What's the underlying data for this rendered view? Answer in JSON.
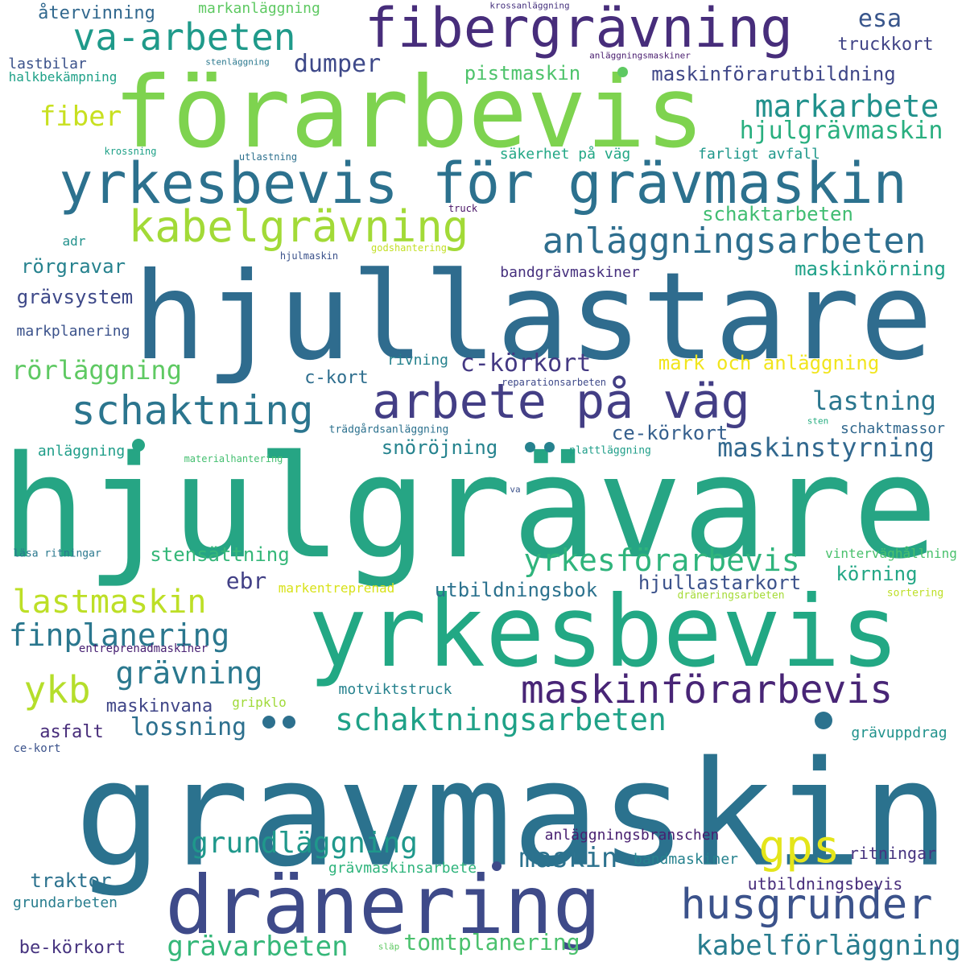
{
  "words": [
    {
      "text": "hjulgrävare",
      "color": "#26a584"
    },
    {
      "text": "gravmaskin",
      "color": "#2b728e"
    },
    {
      "text": "hjullastare",
      "color": "#2f6c8e"
    },
    {
      "text": "förarbevis",
      "color": "#7ed34f"
    },
    {
      "text": "yrkesbevis",
      "color": "#22a884"
    },
    {
      "text": "dränering",
      "color": "#3e4a89"
    },
    {
      "text": "yrkesbevis för grävmaskin",
      "color": "#2c718e"
    },
    {
      "text": "fibergrävning",
      "color": "#472d7b"
    },
    {
      "text": "arbete på väg",
      "color": "#433e85"
    },
    {
      "text": "kabelgrävning",
      "color": "#a2da37"
    },
    {
      "text": "anläggningsarbeten",
      "color": "#2e6e8e"
    },
    {
      "text": "maskinförarbevis",
      "color": "#482576"
    },
    {
      "text": "va-arbeten",
      "color": "#1f9a8a"
    },
    {
      "text": "husgrunder",
      "color": "#3b528b"
    },
    {
      "text": "schaktning",
      "color": "#2b758e"
    },
    {
      "text": "gps",
      "color": "#e4e51a"
    },
    {
      "text": "schaktningsarbeten",
      "color": "#1fa187"
    },
    {
      "text": "markarbete",
      "color": "#21918c"
    },
    {
      "text": "yrkesförarbevis",
      "color": "#2fb47c"
    },
    {
      "text": "hjulgrävmaskin",
      "color": "#29af7f"
    },
    {
      "text": "grundläggning",
      "color": "#1f988b"
    },
    {
      "text": "lastmaskin",
      "color": "#bddf26"
    },
    {
      "text": "finplanering",
      "color": "#2a778e"
    },
    {
      "text": "grävning",
      "color": "#2a788e"
    },
    {
      "text": "ykb",
      "color": "#b5de2b"
    },
    {
      "text": "kabelförläggning",
      "color": "#287c8e"
    },
    {
      "text": "c-körkort",
      "color": "#443983"
    },
    {
      "text": "rörläggning",
      "color": "#5ec962"
    },
    {
      "text": "maskinstyrning",
      "color": "#31688e"
    },
    {
      "text": "lastning",
      "color": "#2a768e"
    },
    {
      "text": "fiber",
      "color": "#c8e020"
    },
    {
      "text": "dumper",
      "color": "#3e4989"
    },
    {
      "text": "esa",
      "color": "#39568c"
    },
    {
      "text": "maskin",
      "color": "#2c728e"
    },
    {
      "text": "grävarbeten",
      "color": "#35b779"
    },
    {
      "text": "tomtplanering",
      "color": "#4ac16d"
    },
    {
      "text": "lossning",
      "color": "#2d708e"
    },
    {
      "text": "pistmaskin",
      "color": "#4ec36b"
    },
    {
      "text": "maskinförarutbildning",
      "color": "#3f4788"
    },
    {
      "text": "schaktarbeten",
      "color": "#40bd72"
    },
    {
      "text": "mark och anläggning",
      "color": "#f1e51d"
    },
    {
      "text": "hjullastarkort",
      "color": "#3b528b"
    },
    {
      "text": "körning",
      "color": "#22a785"
    },
    {
      "text": "stensättning",
      "color": "#35b779"
    },
    {
      "text": "ce-körkort",
      "color": "#355f8d"
    },
    {
      "text": "snöröjning",
      "color": "#25838e"
    },
    {
      "text": "utbildningsbok",
      "color": "#2c728e"
    },
    {
      "text": "maskinkörning",
      "color": "#1fa188"
    },
    {
      "text": "rörgravar",
      "color": "#26828e"
    },
    {
      "text": "grävsystem",
      "color": "#3e4989"
    },
    {
      "text": "ebr",
      "color": "#424086"
    },
    {
      "text": "traktor",
      "color": "#2c728e"
    },
    {
      "text": "asfalt",
      "color": "#472c7a"
    },
    {
      "text": "maskinvana",
      "color": "#404688"
    },
    {
      "text": "be-körkort",
      "color": "#46337f"
    },
    {
      "text": "c-kort",
      "color": "#2e6e8e"
    },
    {
      "text": "truckkort",
      "color": "#414487"
    },
    {
      "text": "markplanering",
      "color": "#3b528b"
    },
    {
      "text": "bandgrävmaskiner",
      "color": "#46307e"
    },
    {
      "text": "anläggningsbranschen",
      "color": "#481f70"
    },
    {
      "text": "återvinning",
      "color": "#31688e"
    },
    {
      "text": "lastbilar",
      "color": "#3b528b"
    },
    {
      "text": "motviktstruck",
      "color": "#26828e"
    },
    {
      "text": "grävmaskinsarbete",
      "color": "#2fb47c"
    },
    {
      "text": "ritningar",
      "color": "#46337f"
    },
    {
      "text": "utbildningsbevis",
      "color": "#472d7b"
    },
    {
      "text": "bandmaskiner",
      "color": "#26828e"
    },
    {
      "text": "grundarbeten",
      "color": "#287d8e"
    },
    {
      "text": "farligt avfall",
      "color": "#1f988b"
    },
    {
      "text": "säkerhet på väg",
      "color": "#22a785"
    },
    {
      "text": "schaktmassor",
      "color": "#31688e"
    },
    {
      "text": "anläggning",
      "color": "#1f9e89"
    },
    {
      "text": "grävuppdrag",
      "color": "#20928c"
    },
    {
      "text": "markanläggning",
      "color": "#5ec962"
    },
    {
      "text": "rivning",
      "color": "#26828e"
    },
    {
      "text": "adr",
      "color": "#21918c"
    },
    {
      "text": "markentreprenad",
      "color": "#d8e219"
    },
    {
      "text": "vinterväghållning",
      "color": "#4ac16d"
    },
    {
      "text": "halkbekämpning",
      "color": "#1fa188"
    },
    {
      "text": "gripklo",
      "color": "#a0da39"
    },
    {
      "text": "ce-kort",
      "color": "#3b528b"
    },
    {
      "text": "entreprenadmaskiner",
      "color": "#482173"
    },
    {
      "text": "läsa ritningar",
      "color": "#2a788e"
    },
    {
      "text": "sortering",
      "color": "#bddf26"
    },
    {
      "text": "dräneringsarbeten",
      "color": "#a5db36"
    },
    {
      "text": "trädgårdsanläggning",
      "color": "#2c718e"
    },
    {
      "text": "plattläggning",
      "color": "#1f9e89"
    },
    {
      "text": "reparationsarbeten",
      "color": "#3e4989"
    },
    {
      "text": "materialhantering",
      "color": "#44bf70"
    },
    {
      "text": "godshantering",
      "color": "#c2df23"
    },
    {
      "text": "hjulmaskin",
      "color": "#3b528b"
    },
    {
      "text": "krossning",
      "color": "#1fa188"
    },
    {
      "text": "utlastning",
      "color": "#2d708e"
    },
    {
      "text": "truck",
      "color": "#471164"
    },
    {
      "text": "stenläggning",
      "color": "#2a788e"
    },
    {
      "text": "anläggningsmaskiner",
      "color": "#481c6e"
    },
    {
      "text": "krossanläggning",
      "color": "#46327e"
    },
    {
      "text": "sten",
      "color": "#26ad81"
    },
    {
      "text": "va",
      "color": "#3b528b"
    },
    {
      "text": "släp",
      "color": "#5ec962"
    }
  ]
}
